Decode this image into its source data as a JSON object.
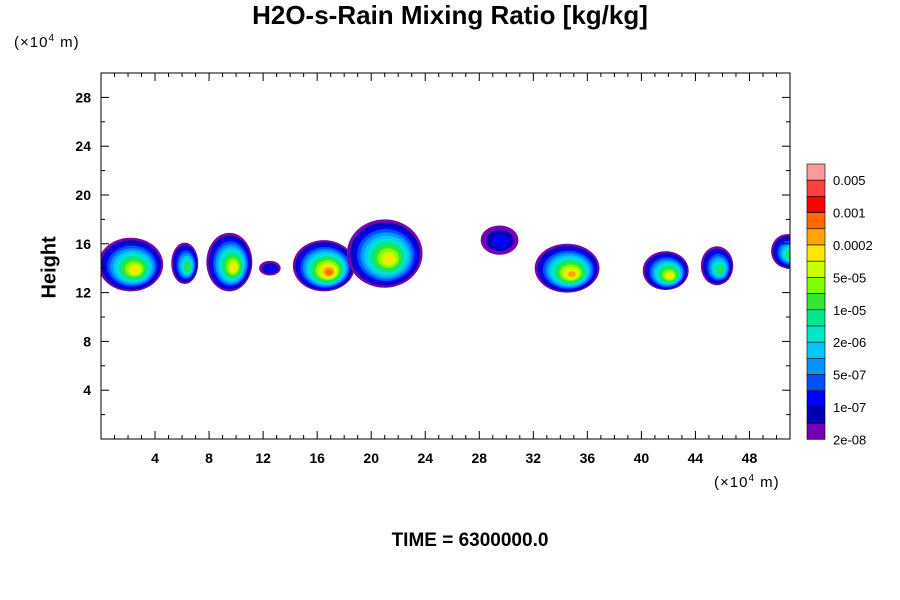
{
  "chart_data": {
    "type": "heatmap",
    "title": "H2O-s-Rain Mixing Ratio [kg/kg]",
    "ylabel": "Height",
    "x_unit": {
      "prefix": "(×10",
      "exp": "4",
      "suffix": " m)"
    },
    "y_unit": {
      "prefix": "(×10",
      "exp": "4",
      "suffix": " m)"
    },
    "xlim": [
      0,
      51
    ],
    "ylim": [
      0,
      30
    ],
    "x_ticks": [
      4,
      8,
      12,
      16,
      20,
      24,
      28,
      32,
      36,
      40,
      44,
      48
    ],
    "y_ticks": [
      4,
      8,
      12,
      16,
      20,
      24,
      28
    ],
    "time_label": "TIME = 6300000.0",
    "colorbar": {
      "labels": [
        "0.005",
        "0.001",
        "0.0002",
        "5e-05",
        "1e-05",
        "2e-06",
        "5e-07",
        "1e-07",
        "2e-08"
      ],
      "colors": [
        "#ff9999",
        "#ff4040",
        "#ff0000",
        "#ff6a00",
        "#ffa500",
        "#ffe600",
        "#c8ff00",
        "#7fff00",
        "#32e632",
        "#00e68c",
        "#00e6c8",
        "#00c8ff",
        "#0096ff",
        "#0050ff",
        "#0000ff",
        "#0000b4",
        "#7800b4"
      ]
    },
    "clouds": [
      {
        "x": 2.2,
        "y": 14.3,
        "rx": 2.4,
        "ry": 2.2,
        "peak": 0.72
      },
      {
        "x": 6.2,
        "y": 14.4,
        "rx": 1.0,
        "ry": 1.7,
        "peak": 0.55
      },
      {
        "x": 9.5,
        "y": 14.5,
        "rx": 1.7,
        "ry": 2.4,
        "peak": 0.72
      },
      {
        "x": 12.5,
        "y": 14.0,
        "rx": 0.8,
        "ry": 0.6,
        "peak": 0.2
      },
      {
        "x": 16.5,
        "y": 14.2,
        "rx": 2.3,
        "ry": 2.1,
        "peak": 0.82
      },
      {
        "x": 21.0,
        "y": 15.2,
        "rx": 2.8,
        "ry": 2.8,
        "peak": 0.72
      },
      {
        "x": 29.5,
        "y": 16.3,
        "rx": 1.4,
        "ry": 1.2,
        "peak": 0.18
      },
      {
        "x": 34.5,
        "y": 14.0,
        "rx": 2.4,
        "ry": 2.0,
        "peak": 0.78
      },
      {
        "x": 41.8,
        "y": 13.8,
        "rx": 1.7,
        "ry": 1.6,
        "peak": 0.7
      },
      {
        "x": 45.6,
        "y": 14.2,
        "rx": 1.2,
        "ry": 1.6,
        "peak": 0.5
      },
      {
        "x": 50.8,
        "y": 15.4,
        "rx": 1.2,
        "ry": 1.4,
        "peak": 0.55
      }
    ]
  }
}
